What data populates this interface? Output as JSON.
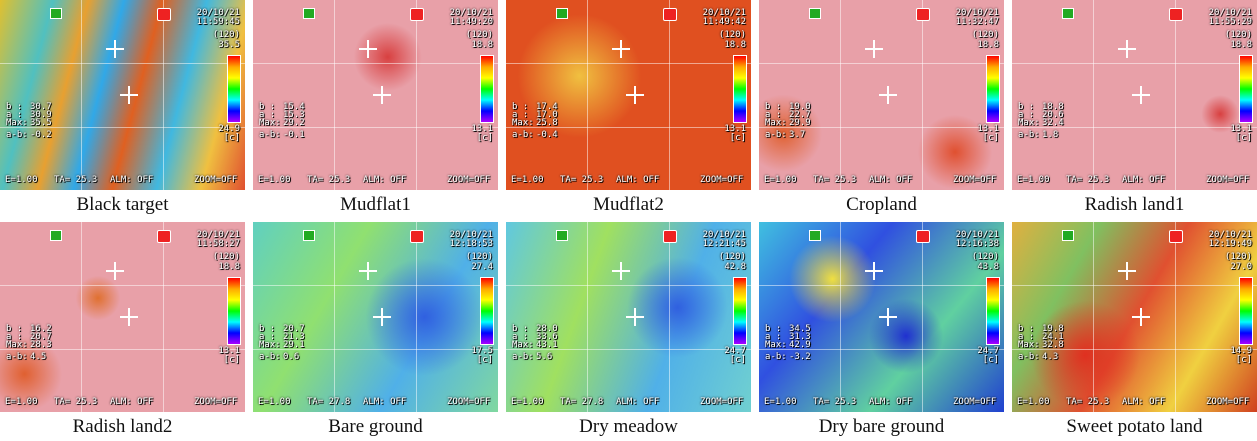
{
  "panels": [
    {
      "caption": "Black target",
      "date": "20/10/21",
      "time": "11:59:45",
      "range": "(120)",
      "scale_max": "35.5",
      "scale_min": "24.9",
      "unit": "[c]",
      "readings": [
        {
          "label": "b :",
          "value": "30.7"
        },
        {
          "label": "a :",
          "value": "30.9"
        },
        {
          "label": "Max:",
          "value": "35.5"
        },
        {
          "label": "a-b:",
          "value": "-0.2"
        }
      ],
      "status": [
        "E=1.00",
        "TA= 25.3",
        "ALM: OFF",
        "ZOOM=OFF"
      ]
    },
    {
      "caption": "Mudflat1",
      "date": "20/10/21",
      "time": "11:49:20",
      "range": "(120)",
      "scale_max": "18.8",
      "scale_min": "13.1",
      "unit": "[c]",
      "readings": [
        {
          "label": "b :",
          "value": "15.4"
        },
        {
          "label": "a :",
          "value": "15.3"
        },
        {
          "label": "Max:",
          "value": "29.2"
        },
        {
          "label": "a-b:",
          "value": "-0.1"
        }
      ],
      "status": [
        "E=1.00",
        "TA= 25.3",
        "ALM: OFF",
        "ZOOM=OFF"
      ]
    },
    {
      "caption": "Mudflat2",
      "date": "20/10/21",
      "time": "11:49:42",
      "range": "(120)",
      "scale_max": "18.8",
      "scale_min": "13.1",
      "unit": "[c]",
      "readings": [
        {
          "label": "b :",
          "value": "17.4"
        },
        {
          "label": "a :",
          "value": "17.0"
        },
        {
          "label": "Max:",
          "value": "25.8"
        },
        {
          "label": "a-b:",
          "value": "-0.4"
        }
      ],
      "status": [
        "E=1.00",
        "TA= 25.3",
        "ALM: OFF",
        "ZOOM=OFF"
      ]
    },
    {
      "caption": "Cropland",
      "date": "20/10/21",
      "time": "11:32:47",
      "range": "(120)",
      "scale_max": "18.8",
      "scale_min": "13.1",
      "unit": "[c]",
      "readings": [
        {
          "label": "b :",
          "value": "19.0"
        },
        {
          "label": "a :",
          "value": "22.7"
        },
        {
          "label": "Max:",
          "value": "29.9"
        },
        {
          "label": "a-b:",
          "value": "3.7"
        }
      ],
      "status": [
        "E=1.00",
        "TA= 25.3",
        "ALM: OFF",
        "ZOOM=OFF"
      ]
    },
    {
      "caption": "Radish land1",
      "date": "20/10/21",
      "time": "11:55:29",
      "range": "(120)",
      "scale_max": "18.8",
      "scale_min": "13.1",
      "unit": "[c]",
      "readings": [
        {
          "label": "b :",
          "value": "18.8"
        },
        {
          "label": "a :",
          "value": "20.6"
        },
        {
          "label": "Max:",
          "value": "32.4"
        },
        {
          "label": "a-b:",
          "value": "1.8"
        }
      ],
      "status": [
        "E=1.00",
        "TA= 25.3",
        "ALM: OFF",
        "ZOOM=OFF"
      ]
    },
    {
      "caption": "Radish land2",
      "date": "20/10/21",
      "time": "11:58:27",
      "range": "(120)",
      "scale_max": "18.8",
      "scale_min": "13.1",
      "unit": "[c]",
      "readings": [
        {
          "label": "b :",
          "value": "16.2"
        },
        {
          "label": "a :",
          "value": "20.7"
        },
        {
          "label": "Max:",
          "value": "28.3"
        },
        {
          "label": "a-b:",
          "value": "4.5"
        }
      ],
      "status": [
        "E=1.00",
        "TA= 25.3",
        "ALM: OFF",
        "ZOOM=OFF"
      ]
    },
    {
      "caption": "Bare ground",
      "date": "20/10/21",
      "time": "12:18:53",
      "range": "(120)",
      "scale_max": "27.4",
      "scale_min": "17.5",
      "unit": "[c]",
      "readings": [
        {
          "label": "b :",
          "value": "20.7"
        },
        {
          "label": "a :",
          "value": "21.3"
        },
        {
          "label": "Max:",
          "value": "29.1"
        },
        {
          "label": "a-b:",
          "value": "0.6"
        }
      ],
      "status": [
        "E=1.00",
        "TA= 27.8",
        "ALM: OFF",
        "ZOOM=OFF"
      ]
    },
    {
      "caption": "Dry meadow",
      "date": "20/10/21",
      "time": "12:21:45",
      "range": "(120)",
      "scale_max": "42.8",
      "scale_min": "24.7",
      "unit": "[c]",
      "readings": [
        {
          "label": "b :",
          "value": "28.0"
        },
        {
          "label": "a :",
          "value": "33.6"
        },
        {
          "label": "Max:",
          "value": "43.1"
        },
        {
          "label": "a-b:",
          "value": "5.6"
        }
      ],
      "status": [
        "E=1.00",
        "TA= 27.8",
        "ALM: OFF",
        "ZOOM=OFF"
      ]
    },
    {
      "caption": "Dry bare ground",
      "date": "20/10/21",
      "time": "12:16:38",
      "range": "(120)",
      "scale_max": "43.8",
      "scale_min": "24.7",
      "unit": "[c]",
      "readings": [
        {
          "label": "b :",
          "value": "34.5"
        },
        {
          "label": "a :",
          "value": "31.3"
        },
        {
          "label": "Max:",
          "value": "42.9"
        },
        {
          "label": "a-b:",
          "value": "-3.2"
        }
      ],
      "status": [
        "E=1.00",
        "TA= 25.3",
        "ALM: OFF",
        "ZOOM=OFF"
      ]
    },
    {
      "caption": "Sweet potato land",
      "date": "20/10/21",
      "time": "12:19:49",
      "range": "(120)",
      "scale_max": "27.0",
      "scale_min": "14.9",
      "unit": "[c]",
      "readings": [
        {
          "label": "b :",
          "value": "19.8"
        },
        {
          "label": "a :",
          "value": "24.1"
        },
        {
          "label": "Max:",
          "value": "32.8"
        },
        {
          "label": "a-b:",
          "value": "4.3"
        }
      ],
      "status": [
        "E=1.00",
        "TA= 25.3",
        "ALM: OFF",
        "ZOOM=OFF"
      ]
    }
  ]
}
